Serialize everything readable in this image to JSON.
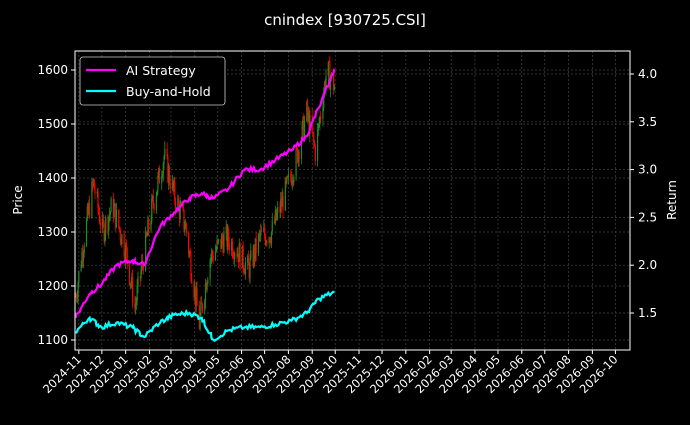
{
  "title": "cnindex [930725.CSI]",
  "colors": {
    "background": "#000000",
    "axes": "#ffffff",
    "grid": "#555555",
    "ai_strategy": "#ff00ff",
    "buy_and_hold": "#00ffff",
    "candle_up": "#228b22",
    "candle_down": "#ff0000"
  },
  "legend": {
    "items": [
      {
        "label": "AI Strategy",
        "color": "#ff00ff"
      },
      {
        "label": "Buy-and-Hold",
        "color": "#00ffff"
      }
    ]
  },
  "axes": {
    "left_ylabel": "Price",
    "right_ylabel": "Return",
    "left_ticks": [
      "1100",
      "1200",
      "1300",
      "1400",
      "1500",
      "1600"
    ],
    "right_ticks": [
      "1.5",
      "2.0",
      "2.5",
      "3.0",
      "3.5",
      "4.0"
    ],
    "x_ticks": [
      "2024-11",
      "2024-12",
      "2025-01",
      "2025-02",
      "2025-03",
      "2025-04",
      "2025-05",
      "2025-06",
      "2025-07",
      "2025-08",
      "2025-09",
      "2025-10",
      "2025-11",
      "2025-12",
      "2026-01",
      "2026-02",
      "2026-03",
      "2026-04",
      "2026-05",
      "2026-06",
      "2026-07",
      "2026-08",
      "2026-09",
      "2026-10"
    ]
  },
  "chart_data": {
    "type": "line",
    "title": "cnindex [930725.CSI]",
    "xlabel": "",
    "ylabel": "Price",
    "y2label": "Return",
    "ylim": [
      1085,
      1640
    ],
    "y2lim": [
      1.1,
      4.25
    ],
    "xlim": [
      "2024-10-27",
      "2026-10-20"
    ],
    "grid": true,
    "legend_position": "upper left",
    "price_candles_approx": {
      "x": [
        "2024-10-28",
        "2024-11-08",
        "2024-11-20",
        "2024-12-02",
        "2024-12-15",
        "2025-01-02",
        "2025-01-13",
        "2025-02-05",
        "2025-02-20",
        "2025-03-05",
        "2025-03-20",
        "2025-04-07",
        "2025-04-20",
        "2025-05-10",
        "2025-05-25",
        "2025-06-10",
        "2025-06-25",
        "2025-07-10",
        "2025-07-25",
        "2025-08-10",
        "2025-08-25",
        "2025-09-05",
        "2025-09-20",
        "2025-09-30"
      ],
      "close": [
        1180,
        1290,
        1390,
        1300,
        1350,
        1260,
        1160,
        1350,
        1440,
        1370,
        1310,
        1130,
        1250,
        1290,
        1270,
        1230,
        1290,
        1300,
        1360,
        1430,
        1520,
        1450,
        1600,
        1570
      ]
    },
    "series": [
      {
        "name": "AI Strategy",
        "axis": "right",
        "x": [
          "2024-10-28",
          "2024-11-15",
          "2024-12-01",
          "2024-12-20",
          "2025-01-10",
          "2025-01-25",
          "2025-02-15",
          "2025-03-05",
          "2025-03-25",
          "2025-04-10",
          "2025-04-25",
          "2025-05-15",
          "2025-06-05",
          "2025-06-25",
          "2025-07-15",
          "2025-08-05",
          "2025-08-25",
          "2025-09-10",
          "2025-09-30"
        ],
        "values": [
          1.45,
          1.7,
          1.8,
          2.0,
          2.05,
          2.0,
          2.4,
          2.55,
          2.7,
          2.75,
          2.7,
          2.8,
          3.0,
          3.0,
          3.1,
          3.2,
          3.35,
          3.65,
          4.05
        ]
      },
      {
        "name": "Buy-and-Hold",
        "axis": "right",
        "x": [
          "2024-10-28",
          "2024-11-15",
          "2024-12-01",
          "2024-12-20",
          "2025-01-10",
          "2025-01-25",
          "2025-02-15",
          "2025-03-05",
          "2025-03-25",
          "2025-04-10",
          "2025-04-25",
          "2025-05-15",
          "2025-06-05",
          "2025-06-25",
          "2025-07-15",
          "2025-08-05",
          "2025-08-25",
          "2025-09-10",
          "2025-09-30"
        ],
        "values": [
          1.3,
          1.45,
          1.35,
          1.4,
          1.35,
          1.25,
          1.4,
          1.48,
          1.5,
          1.45,
          1.22,
          1.32,
          1.35,
          1.35,
          1.38,
          1.42,
          1.5,
          1.65,
          1.72
        ]
      }
    ]
  }
}
